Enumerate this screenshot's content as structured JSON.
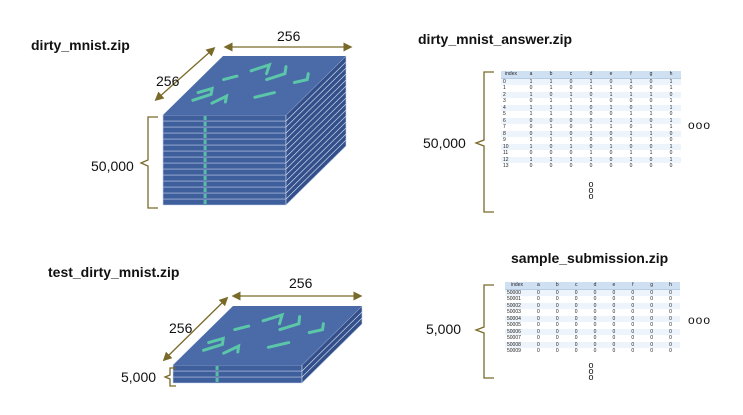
{
  "train": {
    "filename": "dirty_mnist.zip",
    "width_label": "256",
    "height_label": "256",
    "count_label": "50,000"
  },
  "train_answer": {
    "filename": "dirty_mnist_answer.zip",
    "count_label": "50,000",
    "columns": [
      "index",
      "a",
      "b",
      "c",
      "d",
      "e",
      "f",
      "g",
      "h"
    ],
    "rows": [
      [
        "0",
        "1",
        "1",
        "0",
        "1",
        "0",
        "1",
        "0",
        "1"
      ],
      [
        "1",
        "0",
        "1",
        "0",
        "1",
        "1",
        "0",
        "0",
        "1"
      ],
      [
        "2",
        "1",
        "0",
        "1",
        "0",
        "1",
        "1",
        "1",
        "0"
      ],
      [
        "3",
        "0",
        "1",
        "1",
        "1",
        "0",
        "0",
        "0",
        "1"
      ],
      [
        "4",
        "1",
        "1",
        "1",
        "0",
        "1",
        "0",
        "1",
        "1"
      ],
      [
        "5",
        "1",
        "1",
        "1",
        "0",
        "0",
        "1",
        "1",
        "0"
      ],
      [
        "6",
        "0",
        "0",
        "0",
        "0",
        "1",
        "1",
        "0",
        "1"
      ],
      [
        "7",
        "0",
        "1",
        "0",
        "1",
        "1",
        "0",
        "1",
        "1"
      ],
      [
        "8",
        "0",
        "1",
        "0",
        "1",
        "0",
        "1",
        "1",
        "0"
      ],
      [
        "9",
        "1",
        "1",
        "1",
        "0",
        "0",
        "1",
        "1",
        "0"
      ],
      [
        "10",
        "1",
        "0",
        "1",
        "0",
        "1",
        "0",
        "0",
        "1"
      ],
      [
        "11",
        "0",
        "0",
        "0",
        "1",
        "0",
        "1",
        "1",
        "0"
      ],
      [
        "12",
        "1",
        "1",
        "1",
        "1",
        "0",
        "1",
        "0",
        "1"
      ],
      [
        "13",
        "0",
        "0",
        "0",
        "0",
        "0",
        "0",
        "0",
        "0"
      ]
    ],
    "ellipsis": "ooo",
    "vdots": [
      "o",
      "o",
      "o"
    ]
  },
  "test": {
    "filename": "test_dirty_mnist.zip",
    "width_label": "256",
    "height_label": "256",
    "count_label": "5,000"
  },
  "sample_submission": {
    "filename": "sample_submission.zip",
    "count_label": "5,000",
    "columns": [
      "index",
      "a",
      "b",
      "c",
      "d",
      "e",
      "f",
      "g",
      "h"
    ],
    "rows": [
      [
        "50000",
        "0",
        "0",
        "0",
        "0",
        "0",
        "0",
        "0",
        "0"
      ],
      [
        "50001",
        "0",
        "0",
        "0",
        "0",
        "0",
        "0",
        "0",
        "0"
      ],
      [
        "50002",
        "0",
        "0",
        "0",
        "0",
        "0",
        "0",
        "0",
        "0"
      ],
      [
        "50003",
        "0",
        "0",
        "0",
        "0",
        "0",
        "0",
        "0",
        "0"
      ],
      [
        "50004",
        "0",
        "0",
        "0",
        "0",
        "0",
        "0",
        "0",
        "0"
      ],
      [
        "50005",
        "0",
        "0",
        "0",
        "0",
        "0",
        "0",
        "0",
        "0"
      ],
      [
        "50006",
        "0",
        "0",
        "0",
        "0",
        "0",
        "0",
        "0",
        "0"
      ],
      [
        "50007",
        "0",
        "0",
        "0",
        "0",
        "0",
        "0",
        "0",
        "0"
      ],
      [
        "50008",
        "0",
        "0",
        "0",
        "0",
        "0",
        "0",
        "0",
        "0"
      ],
      [
        "50009",
        "0",
        "0",
        "0",
        "0",
        "0",
        "0",
        "0",
        "0"
      ]
    ],
    "ellipsis": "ooo",
    "vdots": [
      "o",
      "o",
      "o"
    ]
  },
  "colors": {
    "slab": "#3f5f9c",
    "slab_top": "#4a6aa8",
    "glyph": "#5ed6a8",
    "brace": "#7a6a2a",
    "header": "#cfe0f3"
  }
}
